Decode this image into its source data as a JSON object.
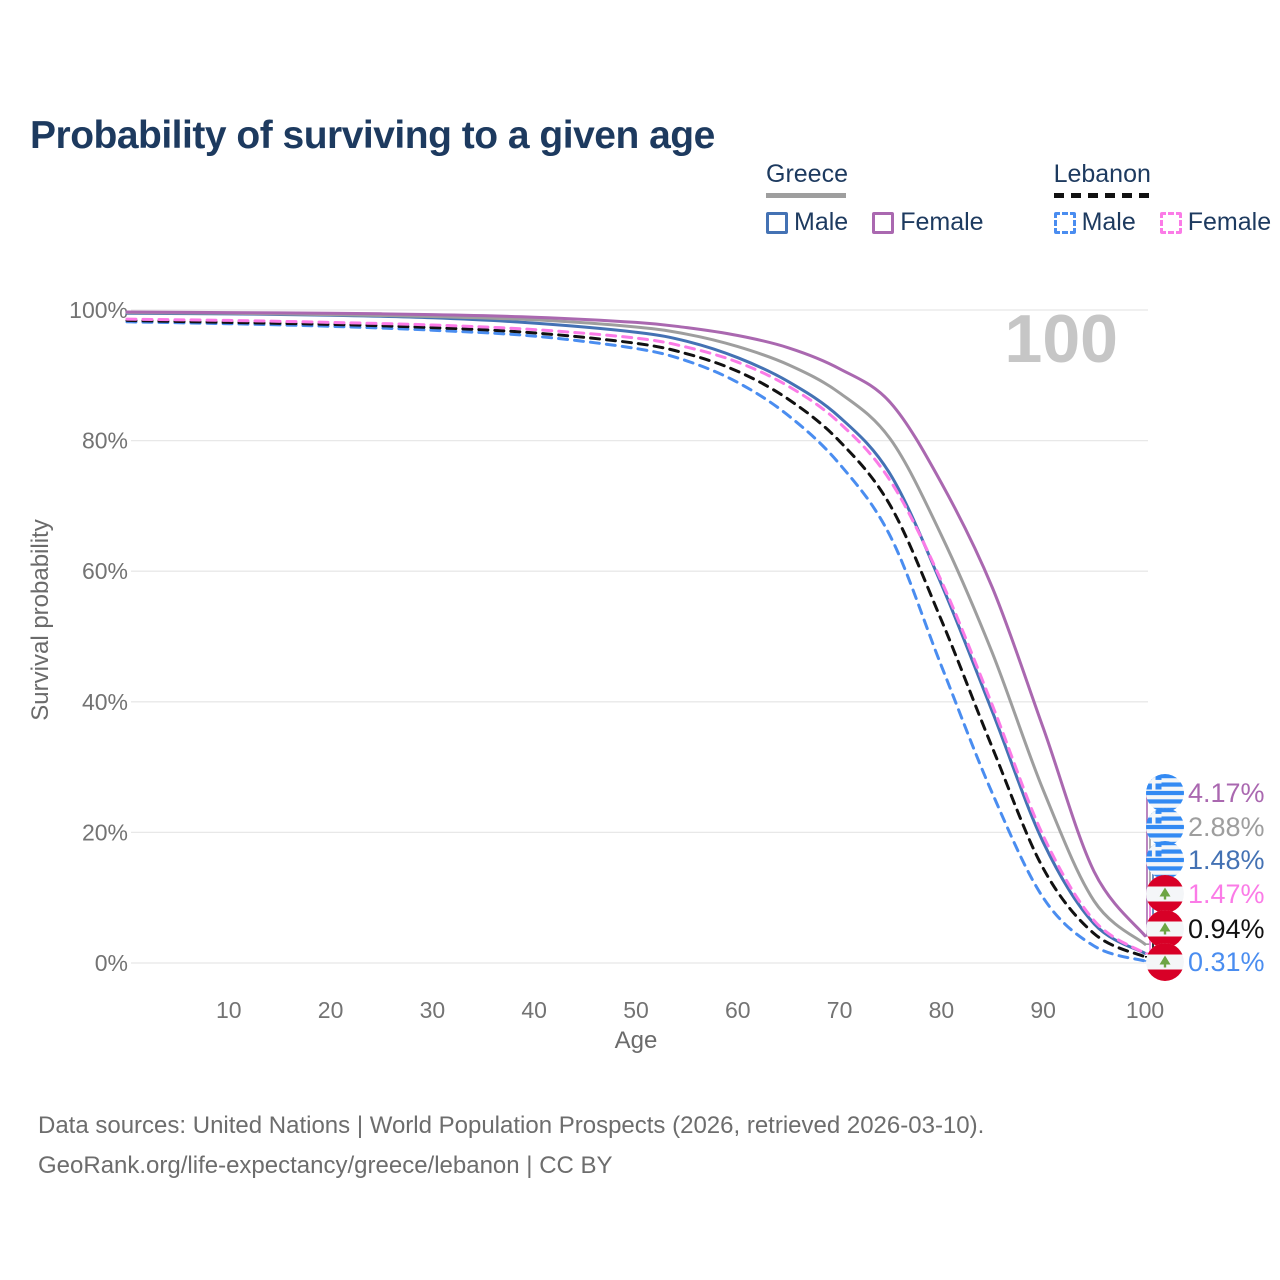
{
  "title": "Probability of surviving to a given age",
  "watermark": "100",
  "legend": {
    "groups": [
      {
        "name": "Greece",
        "line_style": "solid",
        "line_color": "#9e9e9e",
        "items": [
          {
            "label": "Male",
            "color": "#4472b4",
            "dashed": false
          },
          {
            "label": "Female",
            "color": "#aa68b0",
            "dashed": false
          }
        ]
      },
      {
        "name": "Lebanon",
        "line_style": "dashed",
        "line_color": "#111111",
        "items": [
          {
            "label": "Male",
            "color": "#4a8df0",
            "dashed": true
          },
          {
            "label": "Female",
            "color": "#fb7be7",
            "dashed": true
          }
        ]
      }
    ]
  },
  "chart_data": {
    "type": "line",
    "title": "Probability of surviving to a given age",
    "xlabel": "Age",
    "ylabel": "Survival probability",
    "x_ticks": [
      10,
      20,
      30,
      40,
      50,
      60,
      70,
      80,
      90,
      100
    ],
    "y_ticks": [
      {
        "value": 0,
        "label": "0%"
      },
      {
        "value": 20,
        "label": "20%"
      },
      {
        "value": 40,
        "label": "40%"
      },
      {
        "value": 60,
        "label": "60%"
      },
      {
        "value": 80,
        "label": "80%"
      },
      {
        "value": 100,
        "label": "100%"
      }
    ],
    "xlim": [
      0,
      100
    ],
    "ylim": [
      0,
      100
    ],
    "grid": "horizontal",
    "legend_position": "top-right",
    "ages": [
      0,
      10,
      20,
      30,
      40,
      50,
      55,
      60,
      65,
      70,
      75,
      80,
      85,
      90,
      95,
      100
    ],
    "series": [
      {
        "id": "greece-female",
        "country": "Greece",
        "sex": "Female",
        "flag": "greece",
        "color": "#aa68b0",
        "dashed": false,
        "end_label": "4.17%",
        "values": [
          99.7,
          99.6,
          99.5,
          99.3,
          98.9,
          98.1,
          97.3,
          96.1,
          94.2,
          91.0,
          85.8,
          73.5,
          57.5,
          36.0,
          14.0,
          4.17
        ]
      },
      {
        "id": "greece-all",
        "country": "Greece",
        "sex": "All",
        "flag": "greece",
        "color": "#9e9e9e",
        "dashed": false,
        "end_label": "2.88%",
        "values": [
          99.6,
          99.5,
          99.3,
          99.0,
          98.5,
          97.4,
          96.3,
          94.4,
          91.6,
          87.3,
          80.2,
          65.5,
          47.5,
          26.5,
          9.5,
          2.88
        ]
      },
      {
        "id": "greece-male",
        "country": "Greece",
        "sex": "Male",
        "flag": "greece",
        "color": "#4472b4",
        "dashed": false,
        "end_label": "1.48%",
        "values": [
          99.5,
          99.4,
          99.2,
          98.8,
          98.0,
          96.6,
          95.2,
          92.7,
          89.0,
          83.6,
          74.8,
          58.0,
          38.5,
          18.5,
          6.0,
          1.48
        ]
      },
      {
        "id": "lebanon-female",
        "country": "Lebanon",
        "sex": "Female",
        "flag": "lebanon",
        "color": "#fb7be7",
        "dashed": true,
        "end_label": "1.47%",
        "values": [
          98.6,
          98.4,
          98.1,
          97.7,
          97.0,
          95.7,
          94.3,
          92.0,
          88.3,
          82.7,
          73.8,
          58.5,
          39.5,
          19.5,
          6.5,
          1.47
        ]
      },
      {
        "id": "lebanon-all",
        "country": "Lebanon",
        "sex": "All",
        "flag": "lebanon",
        "color": "#111111",
        "dashed": true,
        "end_label": "0.94%",
        "values": [
          98.4,
          98.1,
          97.8,
          97.3,
          96.5,
          94.9,
          93.3,
          90.6,
          86.3,
          79.9,
          70.0,
          52.5,
          33.0,
          14.5,
          4.5,
          0.94
        ]
      },
      {
        "id": "lebanon-male",
        "country": "Lebanon",
        "sex": "Male",
        "flag": "lebanon",
        "color": "#4a8df0",
        "dashed": true,
        "end_label": "0.31%",
        "values": [
          98.2,
          97.9,
          97.5,
          96.9,
          96.0,
          94.1,
          92.2,
          88.9,
          83.8,
          76.4,
          65.3,
          45.5,
          26.0,
          10.0,
          2.6,
          0.31
        ]
      }
    ],
    "flag_colors": {
      "greece_blue": "#338af3",
      "lebanon_red": "#d80027",
      "lebanon_green": "#6da544"
    }
  },
  "footer": {
    "line1": "Data sources: United Nations | World Population Prospects (2026, retrieved 2026-03-10).",
    "line2": "GeoRank.org/life-expectancy/greece/lebanon | CC BY"
  }
}
